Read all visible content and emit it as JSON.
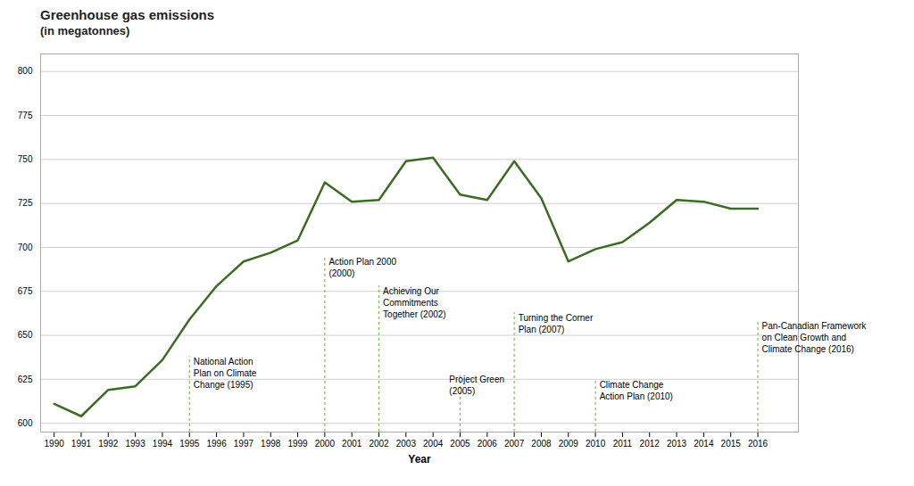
{
  "chart_data": {
    "type": "line",
    "title": "Greenhouse gas emissions",
    "subtitle": "(in megatonnes)",
    "x": [
      1990,
      1991,
      1992,
      1993,
      1994,
      1995,
      1996,
      1997,
      1998,
      1999,
      2000,
      2001,
      2002,
      2003,
      2004,
      2005,
      2006,
      2007,
      2008,
      2009,
      2010,
      2011,
      2012,
      2013,
      2014,
      2015,
      2016
    ],
    "values": [
      611,
      604,
      619,
      621,
      636,
      659,
      678,
      692,
      697,
      704,
      737,
      726,
      727,
      749,
      751,
      730,
      727,
      749,
      728,
      692,
      699,
      703,
      714,
      727,
      726,
      722,
      722
    ],
    "color": "#3d6b21",
    "xlabel": "Year",
    "xlim": [
      1989.5,
      2017.5
    ],
    "xticks": [
      1990,
      1991,
      1992,
      1993,
      1994,
      1995,
      1996,
      1997,
      1998,
      1999,
      2000,
      2001,
      2002,
      2003,
      2004,
      2005,
      2006,
      2007,
      2008,
      2009,
      2010,
      2011,
      2012,
      2013,
      2014,
      2015,
      2016
    ],
    "ylim": [
      595,
      810
    ],
    "yticks": [
      600,
      625,
      650,
      675,
      700,
      725,
      750,
      775,
      800
    ],
    "grid": true,
    "annotations": [
      {
        "text": "National Action\nPlan on Climate\nChange (1995)",
        "x": 1995.15,
        "y": 638,
        "line_x": 1995,
        "line_top": 638,
        "color": "#7ab648"
      },
      {
        "text": "Action Plan 2000\n(2000)",
        "x": 2000.15,
        "y": 695,
        "line_x": 2000,
        "line_top": 695,
        "color": "#7ab648"
      },
      {
        "text": "Achieving Our\nCommitments\nTogether (2002)",
        "x": 2002.15,
        "y": 678,
        "line_x": 2002,
        "line_top": 678,
        "color": "#7ab648"
      },
      {
        "text": "Project Green\n(2005)",
        "x": 2004.6,
        "y": 628,
        "line_x": 2005,
        "line_top": 628,
        "color": "#7ab648"
      },
      {
        "text": "Turning the Corner\nPlan (2007)",
        "x": 2007.15,
        "y": 663,
        "line_x": 2007,
        "line_top": 663,
        "color": "#7ab648"
      },
      {
        "text": "Climate Change\nAction Plan (2010)",
        "x": 2010.15,
        "y": 625,
        "line_x": 2010,
        "line_top": 625,
        "color": "#7ab648"
      },
      {
        "text": "Pan-Canadian Framework\non Clean Growth and\nClimate Change (2016)",
        "x": 2016.15,
        "y": 658,
        "line_x": 2016,
        "line_top": 658,
        "color": "#7ab648"
      }
    ]
  }
}
